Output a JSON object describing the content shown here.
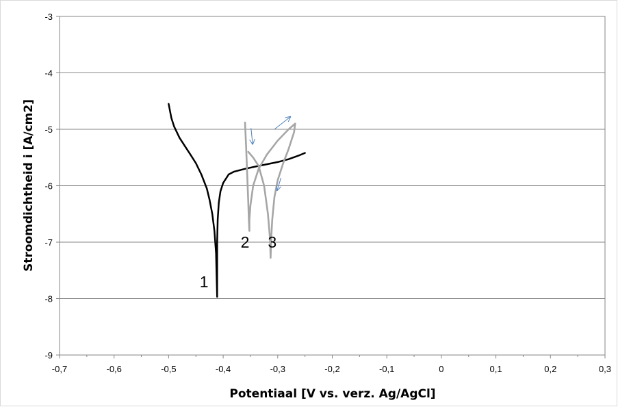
{
  "chart_data": {
    "type": "line",
    "xlabel": "Potentiaal [V vs. verz. Ag/AgCl]",
    "ylabel": "Stroomdichtheid i [A/cm2]",
    "xlim": [
      -0.7,
      0.3
    ],
    "ylim": [
      -9,
      -3
    ],
    "xticks": [
      -0.7,
      -0.6,
      -0.5,
      -0.4,
      -0.3,
      -0.2,
      -0.1,
      0,
      0.1,
      0.2,
      0.3
    ],
    "yticks": [
      -9,
      -8,
      -7,
      -6,
      -5,
      -4,
      -3
    ],
    "xtick_labels": [
      "-0,7",
      "-0,6",
      "-0,5",
      "-0,4",
      "-0,3",
      "-0,2",
      "-0,1",
      "0",
      "0,1",
      "0,2",
      "0,3"
    ],
    "ytick_labels": [
      "-9",
      "-8",
      "-7",
      "-6",
      "-5",
      "-4",
      "-3"
    ],
    "grid": "horizontal",
    "colors": {
      "curve1": "#000000",
      "curve2": "#a6a6a6",
      "curve3": "#a6a6a6",
      "arrows": "#4f81bd",
      "grid": "#868686"
    },
    "series": [
      {
        "label": "1",
        "color": "#000000",
        "x": [
          -0.5,
          -0.495,
          -0.49,
          -0.48,
          -0.47,
          -0.46,
          -0.45,
          -0.44,
          -0.43,
          -0.425,
          -0.42,
          -0.416,
          -0.413,
          -0.412,
          -0.411,
          -0.411,
          -0.411,
          -0.41,
          -0.408,
          -0.405,
          -0.4,
          -0.39,
          -0.38,
          -0.36,
          -0.34,
          -0.32,
          -0.3,
          -0.28,
          -0.26,
          -0.25
        ],
        "y": [
          -4.55,
          -4.8,
          -4.95,
          -5.15,
          -5.3,
          -5.45,
          -5.6,
          -5.8,
          -6.05,
          -6.25,
          -6.5,
          -6.8,
          -7.2,
          -7.6,
          -7.97,
          -7.6,
          -7.0,
          -6.6,
          -6.3,
          -6.1,
          -5.95,
          -5.8,
          -5.75,
          -5.7,
          -5.66,
          -5.62,
          -5.58,
          -5.53,
          -5.46,
          -5.42
        ]
      },
      {
        "label": "2",
        "color": "#a6a6a6",
        "x": [
          -0.36,
          -0.358,
          -0.356,
          -0.354,
          -0.353,
          -0.352,
          -0.352,
          -0.35,
          -0.345,
          -0.335,
          -0.32,
          -0.3,
          -0.28,
          -0.268
        ],
        "y": [
          -4.88,
          -5.3,
          -5.8,
          -6.3,
          -6.6,
          -6.8,
          -6.6,
          -6.35,
          -6.0,
          -5.7,
          -5.45,
          -5.2,
          -5.0,
          -4.9
        ]
      },
      {
        "label": "3",
        "color": "#a6a6a6",
        "x": [
          -0.354,
          -0.345,
          -0.335,
          -0.325,
          -0.318,
          -0.314,
          -0.313,
          -0.312,
          -0.31,
          -0.306,
          -0.3,
          -0.29,
          -0.28,
          -0.27,
          -0.268
        ],
        "y": [
          -5.4,
          -5.5,
          -5.65,
          -6.0,
          -6.5,
          -6.95,
          -7.28,
          -6.95,
          -6.6,
          -6.2,
          -5.9,
          -5.6,
          -5.35,
          -5.05,
          -4.9
        ]
      }
    ],
    "annotations": [
      {
        "text": "1",
        "x": -0.435,
        "y": -7.7
      },
      {
        "text": "2",
        "x": -0.36,
        "y": -7.0
      },
      {
        "text": "3",
        "x": -0.31,
        "y": -7.0
      }
    ],
    "arrows": [
      {
        "x1": -0.349,
        "y1": -4.98,
        "x2": -0.346,
        "y2": -5.26
      },
      {
        "x1": -0.306,
        "y1": -5.0,
        "x2": -0.277,
        "y2": -4.78
      },
      {
        "x1": -0.294,
        "y1": -5.86,
        "x2": -0.301,
        "y2": -6.08
      }
    ]
  }
}
